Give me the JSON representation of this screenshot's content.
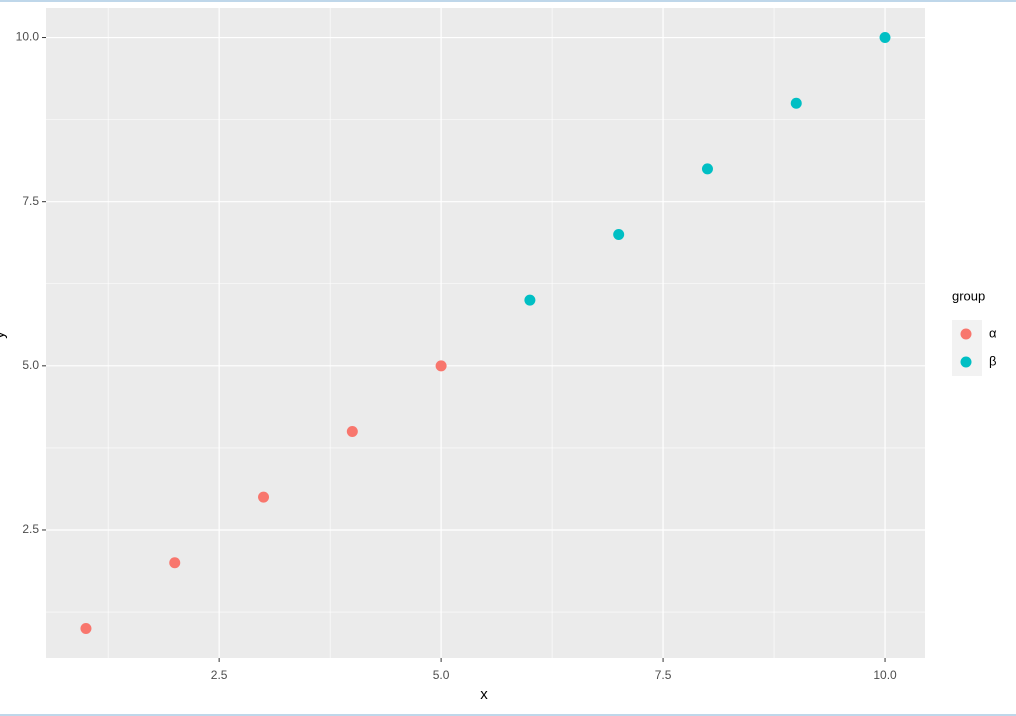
{
  "chart_data": {
    "type": "scatter",
    "xlabel": "x",
    "ylabel": "y",
    "xlim": [
      0.55,
      10.45
    ],
    "ylim": [
      0.55,
      10.45
    ],
    "xticks": [
      2.5,
      {
        "value": 5,
        "label": "5.0"
      },
      7.5,
      {
        "value": 10,
        "label": "10.0"
      }
    ],
    "yticks": [
      2.5,
      {
        "value": 5,
        "label": "5.0"
      },
      7.5,
      {
        "value": 10,
        "label": "10.0"
      }
    ],
    "minor_xticks": [
      1.25,
      3.75,
      6.25,
      8.75
    ],
    "minor_yticks": [
      1.25,
      3.75,
      6.25,
      8.75
    ],
    "grid": true,
    "legend_title": "group",
    "legend_position": "right",
    "series": [
      {
        "name": "α",
        "color": "#F8766D",
        "x": [
          1,
          2,
          3,
          4,
          5
        ],
        "values": [
          1,
          2,
          3,
          4,
          5
        ]
      },
      {
        "name": "β",
        "color": "#00BFC4",
        "x": [
          6,
          7,
          8,
          9,
          10
        ],
        "values": [
          6,
          7,
          8,
          9,
          10
        ]
      }
    ]
  }
}
